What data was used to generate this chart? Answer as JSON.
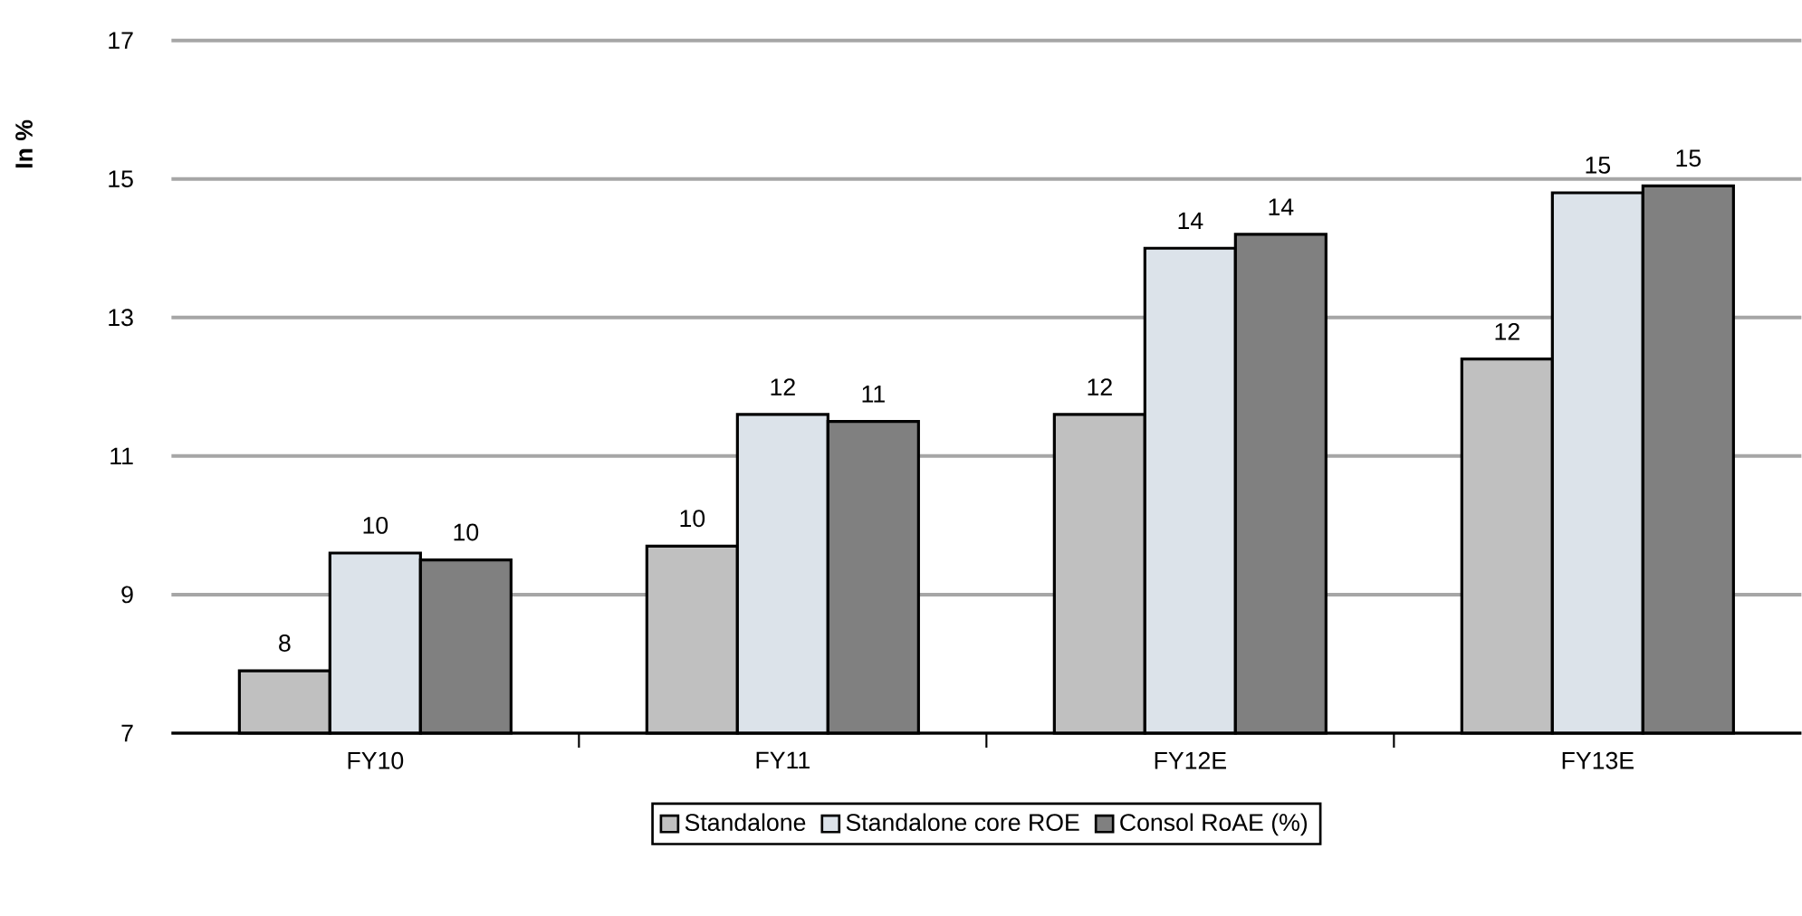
{
  "chart_data": {
    "type": "bar",
    "ylabel": "In %",
    "categories": [
      "FY10",
      "FY11",
      "FY12E",
      "FY13E"
    ],
    "series": [
      {
        "name": "Standalone",
        "color": "#c0c0c0",
        "values": [
          7.9,
          9.7,
          11.6,
          12.4
        ],
        "value_labels": [
          "8",
          "10",
          "12",
          "12"
        ]
      },
      {
        "name": "Standalone core ROE",
        "color": "#dce3ea",
        "values": [
          9.6,
          11.6,
          14.0,
          14.8
        ],
        "value_labels": [
          "10",
          "12",
          "14",
          "15"
        ]
      },
      {
        "name": "Consol RoAE (%)",
        "color": "#808080",
        "values": [
          9.5,
          11.5,
          14.2,
          14.9
        ],
        "value_labels": [
          "10",
          "11",
          "14",
          "15"
        ]
      }
    ],
    "ylim": [
      7,
      17
    ],
    "yticks": [
      7,
      9,
      11,
      13,
      15,
      17
    ],
    "grid": "y",
    "legend": "bottom"
  }
}
